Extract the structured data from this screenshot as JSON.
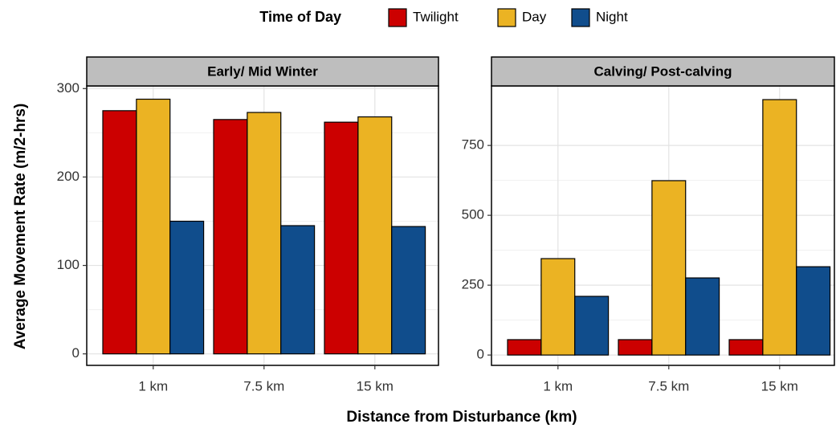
{
  "legend_title": "Time of Day",
  "x_label": "Distance from Disturbance (km)",
  "y_label": "Average Movement Rate (m/2-hrs)",
  "chart_data": [
    {
      "type": "bar",
      "title": "Early/ Mid Winter",
      "categories": [
        "1 km",
        "7.5 km",
        "15 km"
      ],
      "series": [
        {
          "name": "Twilight",
          "color": "#cc0000",
          "values": [
            275,
            265,
            262
          ]
        },
        {
          "name": "Day",
          "color": "#ebb323",
          "values": [
            288,
            273,
            268
          ]
        },
        {
          "name": "Night",
          "color": "#104d8c",
          "values": [
            150,
            145,
            144
          ]
        }
      ],
      "ylim": [
        -13,
        303
      ],
      "yticks": [
        0,
        100,
        200,
        300
      ],
      "grid": true
    },
    {
      "type": "bar",
      "title": "Calving/ Post-calving",
      "categories": [
        "1 km",
        "7.5 km",
        "15 km"
      ],
      "series": [
        {
          "name": "Twilight",
          "color": "#cc0000",
          "values": [
            55,
            55,
            55
          ]
        },
        {
          "name": "Day",
          "color": "#ebb323",
          "values": [
            345,
            624,
            914
          ]
        },
        {
          "name": "Night",
          "color": "#104d8c",
          "values": [
            210,
            276,
            316
          ]
        }
      ],
      "ylim": [
        -37,
        963
      ],
      "yticks": [
        0,
        250,
        500,
        750
      ],
      "grid": true
    }
  ]
}
